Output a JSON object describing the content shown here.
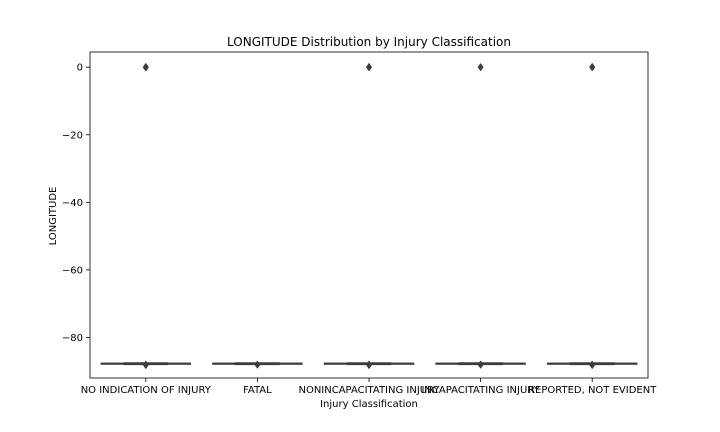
{
  "chart_data": {
    "type": "box",
    "title": "LONGITUDE Distribution by Injury Classification",
    "xlabel": "Injury Classification",
    "ylabel": "LONGITUDE",
    "ylim": [
      -92,
      4.5
    ],
    "yticks": [
      0,
      -20,
      -40,
      -60,
      -80
    ],
    "ytick_labels": [
      "0",
      "−20",
      "−40",
      "−60",
      "−80"
    ],
    "grid": false,
    "legend": "none",
    "box_color": "#3d3d3d",
    "categories": [
      "NO INDICATION OF INJURY",
      "FATAL",
      "NONINCAPACITATING INJURY",
      "INCAPACITATING INJURY",
      "REPORTED, NOT EVIDENT"
    ],
    "boxes": [
      {
        "q1": -87.75,
        "median": -87.68,
        "q3": -87.62,
        "whisker_low": -88.0,
        "whisker_high": -87.5,
        "outliers_low": [
          -87.95,
          -88.05,
          -88.15,
          -88.25
        ],
        "outliers_high": [
          0.0,
          0.05,
          -0.05,
          0.1,
          -0.1,
          0.15,
          -0.15
        ]
      },
      {
        "q1": -87.75,
        "median": -87.68,
        "q3": -87.62,
        "whisker_low": -88.0,
        "whisker_high": -87.5,
        "outliers_low": [
          -87.95,
          -88.05,
          -88.15
        ],
        "outliers_high": []
      },
      {
        "q1": -87.75,
        "median": -87.68,
        "q3": -87.62,
        "whisker_low": -88.0,
        "whisker_high": -87.5,
        "outliers_low": [
          -87.95,
          -88.05,
          -88.15,
          -88.25
        ],
        "outliers_high": [
          0.0,
          0.05,
          -0.05,
          0.1,
          -0.1,
          0.15
        ]
      },
      {
        "q1": -87.75,
        "median": -87.68,
        "q3": -87.62,
        "whisker_low": -88.0,
        "whisker_high": -87.5,
        "outliers_low": [
          -87.95,
          -88.05,
          -88.15
        ],
        "outliers_high": [
          0.0,
          0.08,
          -0.08
        ]
      },
      {
        "q1": -87.75,
        "median": -87.68,
        "q3": -87.62,
        "whisker_low": -88.0,
        "whisker_high": -87.5,
        "outliers_low": [
          -87.95,
          -88.05,
          -88.15,
          -88.25
        ],
        "outliers_high": [
          0.0,
          0.05,
          -0.05,
          0.1,
          -0.1,
          0.15
        ]
      }
    ]
  }
}
